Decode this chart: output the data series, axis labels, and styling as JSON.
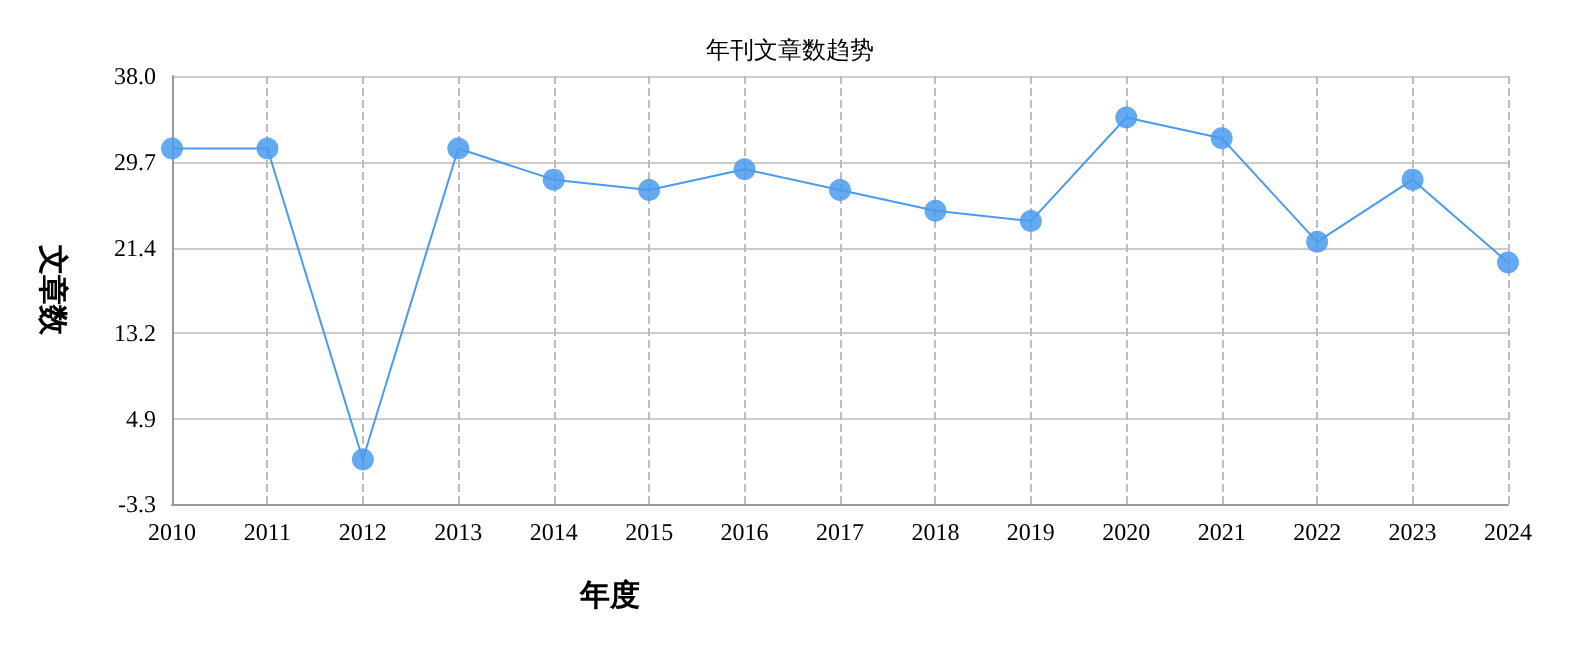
{
  "chart_data": {
    "type": "line",
    "title": "年刊文章数趋势",
    "xlabel": "年度",
    "ylabel": "文章数",
    "categories": [
      "2010",
      "2011",
      "2012",
      "2013",
      "2014",
      "2015",
      "2016",
      "2017",
      "2018",
      "2019",
      "2020",
      "2021",
      "2022",
      "2023",
      "2024"
    ],
    "series": [
      {
        "color": "#4a9bef",
        "values": [
          31,
          31,
          1,
          31,
          28,
          27,
          29,
          27,
          25,
          24,
          34,
          32,
          22,
          28,
          20
        ]
      }
    ],
    "ylim": [
      -3.3,
      38
    ],
    "yticks": [
      -3.3,
      {
        "value": 4.95,
        "label": "4.9"
      },
      13.2,
      {
        "value": 21.45,
        "label": "21.4"
      },
      29.7,
      {
        "value": 38,
        "label": "38.0"
      }
    ],
    "grid": true,
    "marker": "circle",
    "line_style": "solid"
  }
}
